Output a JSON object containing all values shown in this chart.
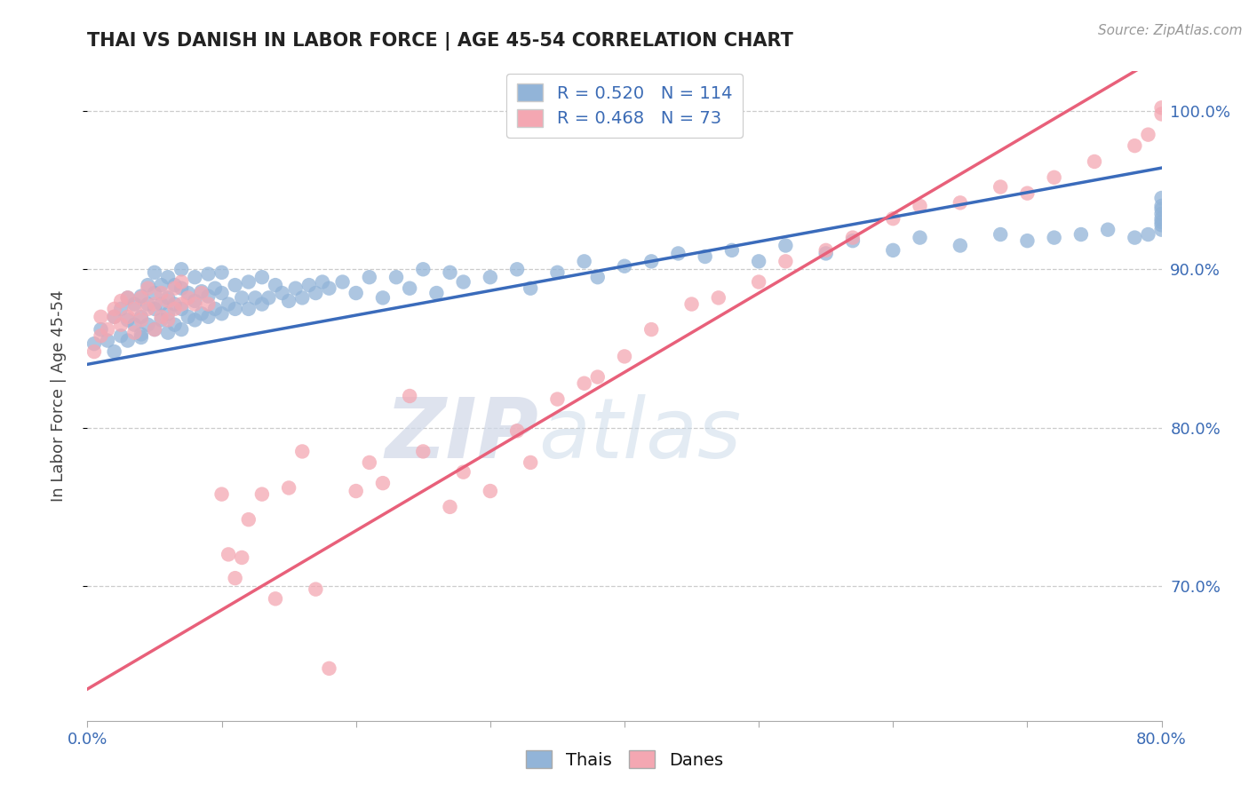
{
  "title": "THAI VS DANISH IN LABOR FORCE | AGE 45-54 CORRELATION CHART",
  "source_text": "Source: ZipAtlas.com",
  "ylabel": "In Labor Force | Age 45-54",
  "xlim": [
    0.0,
    0.8
  ],
  "ylim": [
    0.615,
    1.025
  ],
  "ytick_labels": [
    "70.0%",
    "80.0%",
    "90.0%",
    "100.0%"
  ],
  "ytick_values": [
    0.7,
    0.8,
    0.9,
    1.0
  ],
  "blue_R": 0.52,
  "blue_N": 114,
  "pink_R": 0.468,
  "pink_N": 73,
  "blue_color": "#92B4D8",
  "pink_color": "#F4A7B2",
  "blue_line_color": "#3A6BBB",
  "pink_line_color": "#E8607A",
  "watermark_zip": "ZIP",
  "watermark_atlas": "atlas",
  "legend_label_blue": "Thais",
  "legend_label_pink": "Danes",
  "blue_line_intercept": 0.84,
  "blue_line_slope": 0.155,
  "pink_line_intercept": 0.635,
  "pink_line_slope": 0.5,
  "blue_x": [
    0.005,
    0.01,
    0.015,
    0.02,
    0.02,
    0.025,
    0.025,
    0.03,
    0.03,
    0.03,
    0.035,
    0.035,
    0.04,
    0.04,
    0.04,
    0.04,
    0.045,
    0.045,
    0.045,
    0.05,
    0.05,
    0.05,
    0.05,
    0.055,
    0.055,
    0.055,
    0.06,
    0.06,
    0.06,
    0.06,
    0.065,
    0.065,
    0.065,
    0.07,
    0.07,
    0.07,
    0.07,
    0.075,
    0.075,
    0.08,
    0.08,
    0.08,
    0.085,
    0.085,
    0.09,
    0.09,
    0.09,
    0.095,
    0.095,
    0.1,
    0.1,
    0.1,
    0.105,
    0.11,
    0.11,
    0.115,
    0.12,
    0.12,
    0.125,
    0.13,
    0.13,
    0.135,
    0.14,
    0.145,
    0.15,
    0.155,
    0.16,
    0.165,
    0.17,
    0.175,
    0.18,
    0.19,
    0.2,
    0.21,
    0.22,
    0.23,
    0.24,
    0.25,
    0.26,
    0.27,
    0.28,
    0.3,
    0.32,
    0.33,
    0.35,
    0.37,
    0.38,
    0.4,
    0.42,
    0.44,
    0.46,
    0.48,
    0.5,
    0.52,
    0.55,
    0.57,
    0.6,
    0.62,
    0.65,
    0.68,
    0.7,
    0.72,
    0.74,
    0.76,
    0.78,
    0.79,
    0.8,
    0.8,
    0.8,
    0.8,
    0.8,
    0.8,
    0.8,
    0.8
  ],
  "blue_y": [
    0.853,
    0.862,
    0.855,
    0.87,
    0.848,
    0.875,
    0.858,
    0.868,
    0.882,
    0.855,
    0.865,
    0.878,
    0.857,
    0.87,
    0.883,
    0.859,
    0.865,
    0.878,
    0.89,
    0.862,
    0.875,
    0.885,
    0.898,
    0.868,
    0.878,
    0.89,
    0.86,
    0.872,
    0.882,
    0.895,
    0.865,
    0.878,
    0.89,
    0.862,
    0.875,
    0.888,
    0.9,
    0.87,
    0.885,
    0.868,
    0.88,
    0.895,
    0.872,
    0.886,
    0.87,
    0.883,
    0.897,
    0.875,
    0.888,
    0.872,
    0.885,
    0.898,
    0.878,
    0.875,
    0.89,
    0.882,
    0.875,
    0.892,
    0.882,
    0.878,
    0.895,
    0.882,
    0.89,
    0.885,
    0.88,
    0.888,
    0.882,
    0.89,
    0.885,
    0.892,
    0.888,
    0.892,
    0.885,
    0.895,
    0.882,
    0.895,
    0.888,
    0.9,
    0.885,
    0.898,
    0.892,
    0.895,
    0.9,
    0.888,
    0.898,
    0.905,
    0.895,
    0.902,
    0.905,
    0.91,
    0.908,
    0.912,
    0.905,
    0.915,
    0.91,
    0.918,
    0.912,
    0.92,
    0.915,
    0.922,
    0.918,
    0.92,
    0.922,
    0.925,
    0.92,
    0.922,
    0.925,
    0.928,
    0.93,
    0.935,
    0.932,
    0.938,
    0.94,
    0.945
  ],
  "pink_x": [
    0.005,
    0.01,
    0.01,
    0.015,
    0.02,
    0.02,
    0.025,
    0.025,
    0.03,
    0.03,
    0.035,
    0.035,
    0.04,
    0.04,
    0.045,
    0.045,
    0.05,
    0.05,
    0.055,
    0.055,
    0.06,
    0.06,
    0.065,
    0.065,
    0.07,
    0.07,
    0.075,
    0.08,
    0.085,
    0.09,
    0.1,
    0.105,
    0.11,
    0.115,
    0.12,
    0.13,
    0.14,
    0.15,
    0.16,
    0.17,
    0.18,
    0.2,
    0.21,
    0.22,
    0.24,
    0.25,
    0.27,
    0.28,
    0.3,
    0.32,
    0.33,
    0.35,
    0.37,
    0.38,
    0.4,
    0.42,
    0.45,
    0.47,
    0.5,
    0.52,
    0.55,
    0.57,
    0.6,
    0.62,
    0.65,
    0.68,
    0.7,
    0.72,
    0.75,
    0.78,
    0.79,
    0.8,
    0.8
  ],
  "pink_y": [
    0.848,
    0.858,
    0.87,
    0.862,
    0.87,
    0.875,
    0.865,
    0.88,
    0.87,
    0.882,
    0.86,
    0.875,
    0.868,
    0.882,
    0.875,
    0.888,
    0.862,
    0.878,
    0.87,
    0.885,
    0.868,
    0.88,
    0.875,
    0.888,
    0.878,
    0.892,
    0.882,
    0.878,
    0.885,
    0.878,
    0.758,
    0.72,
    0.705,
    0.718,
    0.742,
    0.758,
    0.692,
    0.762,
    0.785,
    0.698,
    0.648,
    0.76,
    0.778,
    0.765,
    0.82,
    0.785,
    0.75,
    0.772,
    0.76,
    0.798,
    0.778,
    0.818,
    0.828,
    0.832,
    0.845,
    0.862,
    0.878,
    0.882,
    0.892,
    0.905,
    0.912,
    0.92,
    0.932,
    0.94,
    0.942,
    0.952,
    0.948,
    0.958,
    0.968,
    0.978,
    0.985,
    0.998,
    1.002
  ]
}
